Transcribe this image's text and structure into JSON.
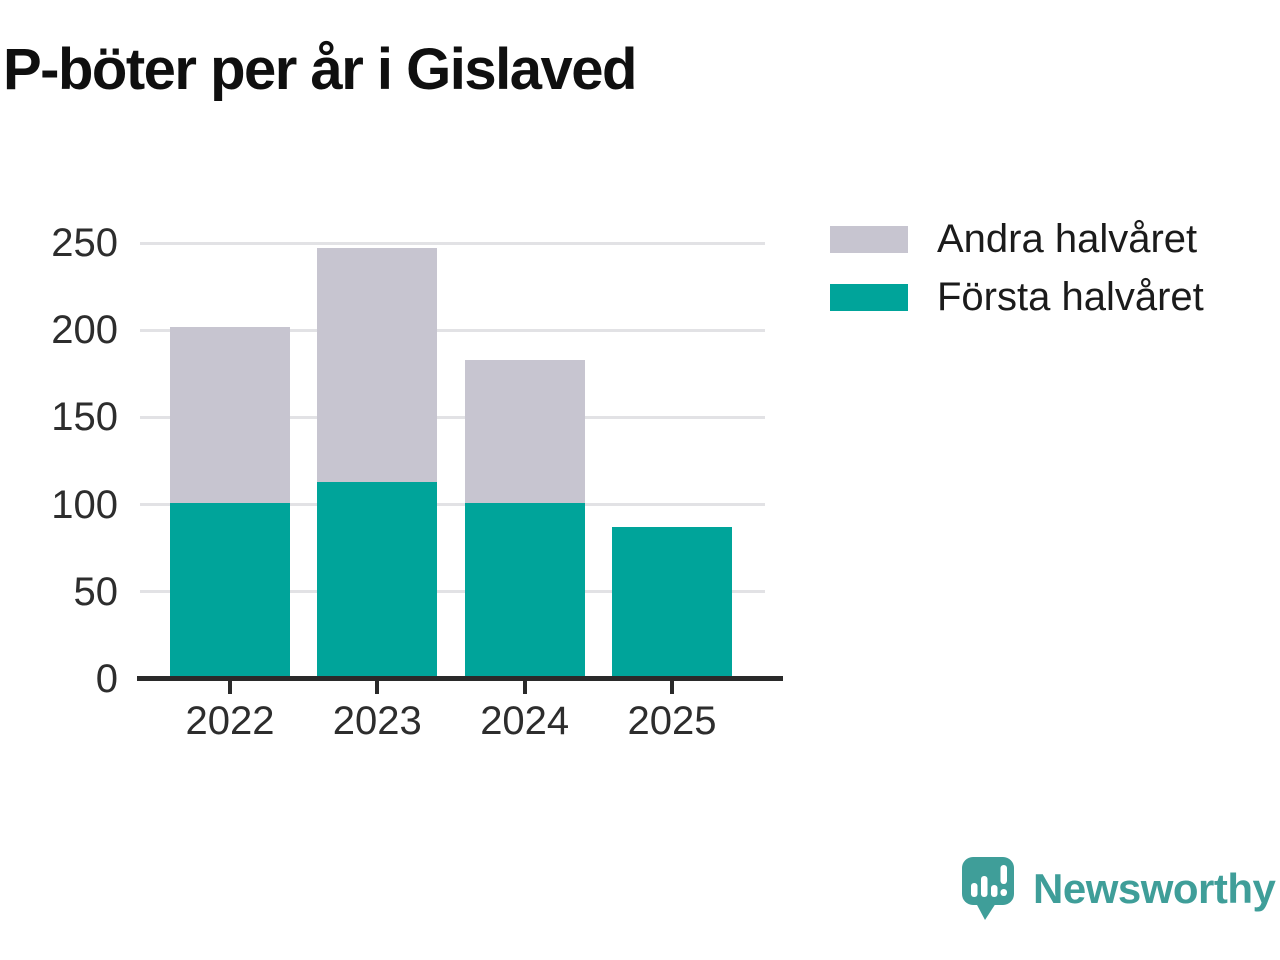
{
  "title": "P-böter per år i Gislaved",
  "colors": {
    "first_half": "#00a49a",
    "second_half": "#c7c5d0",
    "gridline": "#e2e2e5",
    "axis": "#2a2a2a",
    "tick_text": "#2d2d2d",
    "title_text": "#0f0f0f",
    "logo": "#3f9e99"
  },
  "legend": {
    "items": [
      {
        "label": "Andra halvåret",
        "color": "#c7c5d0"
      },
      {
        "label": "Första halvåret",
        "color": "#00a49a"
      }
    ]
  },
  "chart_data": {
    "type": "bar",
    "stacked": true,
    "title": "P-böter per år i Gislaved",
    "categories": [
      "2022",
      "2023",
      "2024",
      "2025"
    ],
    "series": [
      {
        "name": "Första halvåret",
        "values": [
          101,
          113,
          101,
          87
        ],
        "color": "#00a49a"
      },
      {
        "name": "Andra halvåret",
        "values": [
          101,
          134,
          82,
          0
        ],
        "color": "#c7c5d0"
      }
    ],
    "totals": [
      202,
      247,
      183,
      87
    ],
    "xlabel": "",
    "ylabel": "",
    "ylim": [
      0,
      250
    ],
    "yticks": [
      0,
      50,
      100,
      150,
      200,
      250
    ],
    "grid": true,
    "legend_position": "top-right"
  },
  "branding": {
    "logo_text": "Newsworthy"
  }
}
